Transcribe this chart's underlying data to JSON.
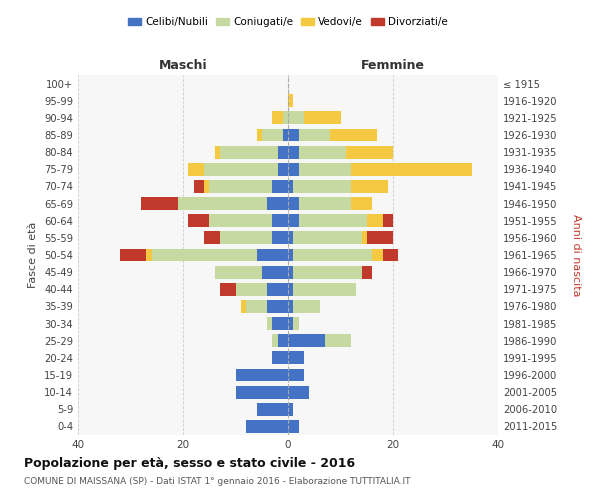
{
  "age_groups": [
    "0-4",
    "5-9",
    "10-14",
    "15-19",
    "20-24",
    "25-29",
    "30-34",
    "35-39",
    "40-44",
    "45-49",
    "50-54",
    "55-59",
    "60-64",
    "65-69",
    "70-74",
    "75-79",
    "80-84",
    "85-89",
    "90-94",
    "95-99",
    "100+"
  ],
  "birth_years": [
    "2011-2015",
    "2006-2010",
    "2001-2005",
    "1996-2000",
    "1991-1995",
    "1986-1990",
    "1981-1985",
    "1976-1980",
    "1971-1975",
    "1966-1970",
    "1961-1965",
    "1956-1960",
    "1951-1955",
    "1946-1950",
    "1941-1945",
    "1936-1940",
    "1931-1935",
    "1926-1930",
    "1921-1925",
    "1916-1920",
    "≤ 1915"
  ],
  "colors": {
    "celibe": "#4472c4",
    "coniugato": "#c5d9a0",
    "vedovo": "#f5c842",
    "divorziato": "#c0392b"
  },
  "maschi": {
    "celibe": [
      8,
      6,
      10,
      10,
      3,
      2,
      3,
      4,
      4,
      5,
      6,
      3,
      3,
      4,
      3,
      2,
      2,
      1,
      0,
      0,
      0
    ],
    "coniugato": [
      0,
      0,
      0,
      0,
      0,
      1,
      1,
      4,
      6,
      9,
      20,
      10,
      12,
      17,
      12,
      14,
      11,
      4,
      1,
      0,
      0
    ],
    "vedovo": [
      0,
      0,
      0,
      0,
      0,
      0,
      0,
      1,
      0,
      0,
      1,
      0,
      0,
      0,
      1,
      3,
      1,
      1,
      2,
      0,
      0
    ],
    "divorziato": [
      0,
      0,
      0,
      0,
      0,
      0,
      0,
      0,
      3,
      0,
      5,
      3,
      4,
      7,
      2,
      0,
      0,
      0,
      0,
      0,
      0
    ]
  },
  "femmine": {
    "nubile": [
      2,
      1,
      4,
      3,
      3,
      7,
      1,
      1,
      1,
      1,
      1,
      1,
      2,
      2,
      1,
      2,
      2,
      2,
      0,
      0,
      0
    ],
    "coniugata": [
      0,
      0,
      0,
      0,
      0,
      5,
      1,
      5,
      12,
      13,
      15,
      13,
      13,
      10,
      11,
      10,
      9,
      6,
      3,
      0,
      0
    ],
    "vedova": [
      0,
      0,
      0,
      0,
      0,
      0,
      0,
      0,
      0,
      0,
      2,
      1,
      3,
      4,
      7,
      23,
      9,
      9,
      7,
      1,
      0
    ],
    "divorziata": [
      0,
      0,
      0,
      0,
      0,
      0,
      0,
      0,
      0,
      2,
      3,
      5,
      2,
      0,
      0,
      0,
      0,
      0,
      0,
      0,
      0
    ]
  },
  "xlim": 40,
  "title": "Popolazione per età, sesso e stato civile - 2016",
  "subtitle": "COMUNE DI MAISSANA (SP) - Dati ISTAT 1° gennaio 2016 - Elaborazione TUTTITALIA.IT",
  "ylabel_left": "Fasce di età",
  "ylabel_right": "Anni di nascita",
  "xlabel_left": "Maschi",
  "xlabel_right": "Femmine",
  "legend_labels": [
    "Celibi/Nubili",
    "Coniugati/e",
    "Vedovi/e",
    "Divorziati/e"
  ],
  "legend_colors": [
    "#4472c4",
    "#c5d9a0",
    "#f5c842",
    "#c0392b"
  ]
}
